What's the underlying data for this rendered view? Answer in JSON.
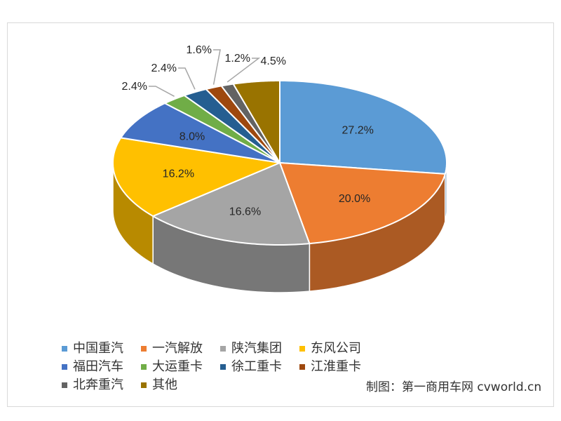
{
  "chart_data": {
    "type": "pie",
    "style": "3d",
    "start": "12 o'clock, clockwise",
    "categories": [
      "中国重汽",
      "一汽解放",
      "陕汽集团",
      "东风公司",
      "福田汽车",
      "大运重卡",
      "徐工重卡",
      "江淮重卡",
      "北奔重汽",
      "其他"
    ],
    "values": [
      27.2,
      20.0,
      16.6,
      16.2,
      8.0,
      2.4,
      2.4,
      1.6,
      1.2,
      4.5
    ],
    "labels": [
      "27.2%",
      "20.0%",
      "16.6%",
      "16.2%",
      "8.0%",
      "2.4%",
      "2.4%",
      "1.6%",
      "1.2%",
      "4.5%"
    ],
    "colors": [
      "#5B9BD5",
      "#ED7D31",
      "#A5A5A5",
      "#FFC000",
      "#4472C4",
      "#70AD47",
      "#255E91",
      "#9E480E",
      "#636363",
      "#997300"
    ],
    "legend_position": "bottom"
  },
  "credit": "制图：第一商用车网 cvworld.cn"
}
